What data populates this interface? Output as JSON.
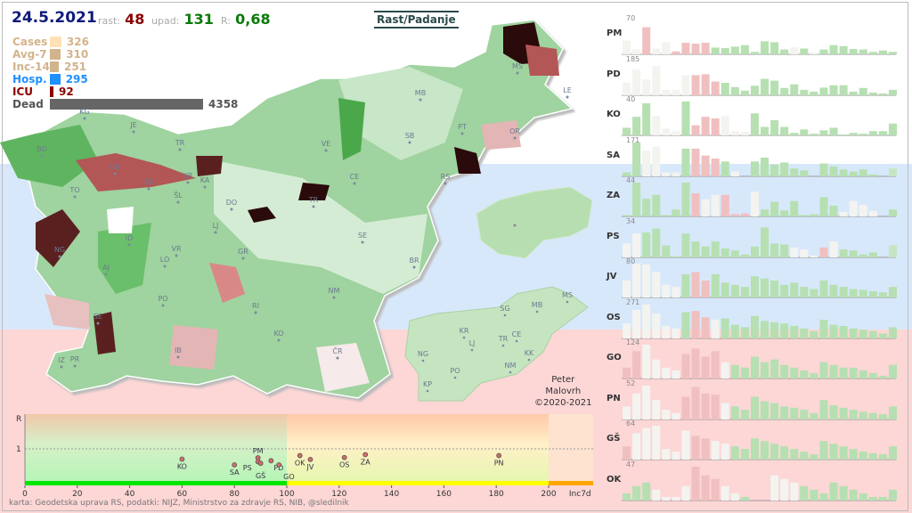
{
  "header": {
    "date": "24.5.2021",
    "rast_label": "rast:",
    "rast_value": "48",
    "upad_label": "upad:",
    "upad_value": "131",
    "r_label": "R:",
    "r_value": "0,68",
    "title": "Rast/Padanje"
  },
  "stats": [
    {
      "label": "Cases",
      "value": "326",
      "color": "#ffe1b5",
      "text_color": "#d6b48a",
      "fraction": 0.075
    },
    {
      "label": "Avg-7",
      "value": "310",
      "color": "#d2b48c",
      "text_color": "#d2b48c",
      "fraction": 0.071
    },
    {
      "label": "Inc-14",
      "value": "251",
      "color": "#d2b48c",
      "text_color": "#d2b48c",
      "fraction": 0.058
    },
    {
      "label": "Hosp.",
      "value": "295",
      "color": "#1e90ff",
      "text_color": "#1e90ff",
      "fraction": 0.068
    },
    {
      "label": "ICU",
      "value": "92",
      "color": "#8b0000",
      "text_color": "#8b0000",
      "fraction": 0.021
    },
    {
      "label": "Dead",
      "value": "4358",
      "color": "#666666",
      "text_color": "#555555",
      "fraction": 1.0
    }
  ],
  "map": {
    "labels": [
      "KG",
      "JE",
      "BO",
      "BB",
      "TR",
      "ŽE",
      "KR",
      "KA",
      "ŠL",
      "TO",
      "DO",
      "LJ",
      "ID",
      "VR",
      "GR",
      "NG",
      "AJ",
      "LO",
      "PO",
      "SE",
      "IB",
      "RI",
      "KO",
      "ČR",
      "IZ",
      "PR",
      "VE",
      "CE",
      "SB",
      "RS",
      "TR",
      "SE",
      "BR",
      "NM",
      "MB",
      "PT",
      "OR",
      "MS",
      "LE"
    ],
    "inset_labels": [
      "MS",
      "MB",
      "SG",
      "KR",
      "CE",
      "TR",
      "LJ",
      "NG",
      "KK",
      "NM",
      "PO",
      "KP"
    ]
  },
  "credit": {
    "line1": "Peter",
    "line2": "Malovrh",
    "line3": "©2020-2021"
  },
  "source": "karta: Geodetska uprava RS,  podatki: NIJZ, Ministrstvo za zdravje RS, NIB, @sledilnik",
  "regions_panel": [
    {
      "code": "PM",
      "max": "70",
      "values": [
        28,
        10,
        56,
        12,
        25,
        6,
        24,
        22,
        24,
        14,
        13,
        16,
        19,
        5,
        27,
        25,
        10,
        15,
        12,
        4,
        10,
        19,
        17,
        11,
        10,
        5,
        8,
        5
      ],
      "colors": "wwrwwrrrrggggggggwgwggggggggg"
    },
    {
      "code": "PD",
      "max": "185",
      "values": [
        70,
        140,
        87,
        160,
        30,
        30,
        110,
        110,
        115,
        75,
        68,
        45,
        25,
        52,
        90,
        80,
        40,
        60,
        30,
        20,
        42,
        55,
        55,
        20,
        40,
        15,
        10,
        30
      ],
      "colors": "wwwwwwwrrrgggggggggggggggggg"
    },
    {
      "code": "KO",
      "max": "40",
      "values": [
        9,
        22,
        38,
        23,
        8,
        5,
        40,
        12,
        22,
        20,
        23,
        5,
        4,
        26,
        10,
        18,
        10,
        3,
        7,
        2,
        6,
        9,
        1,
        3,
        2,
        5,
        5,
        14
      ],
      "colors": "gggwwwgrrrwwwggggggggggggggg"
    },
    {
      "code": "SA",
      "max": "171",
      "values": [
        20,
        171,
        130,
        150,
        20,
        20,
        140,
        140,
        105,
        90,
        75,
        25,
        0,
        75,
        95,
        60,
        70,
        40,
        30,
        0,
        65,
        50,
        35,
        25,
        35,
        10,
        0,
        40
      ],
      "colors": "ggwwwwgrrrgwwgggggggggggggg"
    },
    {
      "code": "ZA",
      "max": "44",
      "values": [
        2,
        44,
        23,
        28,
        2,
        9,
        44,
        30,
        22,
        28,
        28,
        3,
        4,
        32,
        9,
        19,
        8,
        20,
        2,
        3,
        25,
        14,
        6,
        20,
        15,
        7,
        0,
        9
      ],
      "colors": "gggggggrwwrrrwggggggggwwwwgg"
    },
    {
      "code": "PS",
      "max": "34",
      "values": [
        14,
        24,
        25,
        29,
        12,
        1,
        24,
        16,
        11,
        16,
        9,
        7,
        3,
        11,
        30,
        14,
        13,
        10,
        8,
        2,
        10,
        16,
        8,
        7,
        3,
        5,
        0,
        12
      ],
      "colors": "wwgggggggggggggggwwwrwggggg"
    },
    {
      "code": "JV",
      "max": "80",
      "values": [
        40,
        80,
        78,
        60,
        30,
        25,
        55,
        60,
        40,
        55,
        35,
        30,
        25,
        50,
        45,
        40,
        30,
        35,
        25,
        20,
        40,
        30,
        25,
        20,
        18,
        15,
        12,
        25
      ],
      "colors": "wwwwwwgrrggggggggggggggggggg"
    },
    {
      "code": "OS",
      "max": "271",
      "values": [
        120,
        230,
        271,
        200,
        100,
        80,
        210,
        220,
        170,
        150,
        160,
        110,
        90,
        180,
        140,
        130,
        120,
        100,
        80,
        60,
        150,
        110,
        100,
        80,
        70,
        60,
        40,
        90
      ],
      "colors": "wwwwwwgrrwgggggggggggggggggg"
    },
    {
      "code": "GO",
      "max": "124",
      "values": [
        40,
        100,
        124,
        70,
        40,
        30,
        90,
        110,
        80,
        100,
        60,
        50,
        40,
        80,
        60,
        70,
        50,
        40,
        30,
        20,
        60,
        50,
        40,
        40,
        30,
        20,
        10,
        50
      ],
      "colors": "rrwwwwrrrrwggggggggggggggggg"
    },
    {
      "code": "PN",
      "max": "52",
      "values": [
        20,
        40,
        52,
        30,
        15,
        10,
        35,
        50,
        40,
        38,
        25,
        20,
        15,
        35,
        28,
        25,
        20,
        18,
        15,
        10,
        30,
        22,
        18,
        15,
        12,
        10,
        8,
        20
      ],
      "colors": "wwwwwwrrrrwggggggggggggggggg"
    },
    {
      "code": "GŠ",
      "max": "64",
      "values": [
        25,
        50,
        60,
        64,
        20,
        15,
        55,
        45,
        40,
        35,
        30,
        25,
        20,
        40,
        35,
        30,
        25,
        20,
        15,
        10,
        35,
        30,
        25,
        20,
        15,
        12,
        10,
        25
      ],
      "colors": "rwwwwwwrrwwggggggggggggggggg"
    },
    {
      "code": "OK",
      "max": "47",
      "values": [
        10,
        20,
        25,
        15,
        5,
        5,
        20,
        47,
        35,
        30,
        20,
        10,
        5,
        0,
        0,
        35,
        30,
        25,
        20,
        15,
        10,
        25,
        20,
        15,
        10,
        5,
        5,
        15
      ],
      "colors": "gggwwwwrrrwwgggwwwggggggggggg"
    }
  ],
  "chart_data": {
    "type": "scatter",
    "xlabel": "Inc7d",
    "ylabel": "R",
    "xlim": [
      0,
      217
    ],
    "ylim": [
      0,
      1.9
    ],
    "x_ticks": [
      "0",
      "20",
      "40",
      "60",
      "80",
      "100",
      "120",
      "140",
      "160",
      "180",
      "200"
    ],
    "y_ticks": [
      "1"
    ],
    "zones": [
      {
        "from": 0,
        "to": 100,
        "color": "#00e600"
      },
      {
        "from": 100,
        "to": 200,
        "color": "#ffff00"
      },
      {
        "from": 200,
        "to": 217,
        "color": "#ffa500"
      }
    ],
    "points": [
      {
        "label": "KO",
        "x": 60,
        "y": 0.68
      },
      {
        "label": "SA",
        "x": 80,
        "y": 0.5
      },
      {
        "label": "PM",
        "x": 89,
        "y": 0.72
      },
      {
        "label": "PS",
        "x": 89,
        "y": 0.6
      },
      {
        "label": "GŠ",
        "x": 90,
        "y": 0.55
      },
      {
        "label": "PD",
        "x": 94,
        "y": 0.63
      },
      {
        "label": "GO",
        "x": 97,
        "y": 0.5
      },
      {
        "label": "OK",
        "x": 105,
        "y": 0.79
      },
      {
        "label": "JV",
        "x": 109,
        "y": 0.67
      },
      {
        "label": "OS",
        "x": 122,
        "y": 0.73
      },
      {
        "label": "ZA",
        "x": 130,
        "y": 0.82
      },
      {
        "label": "PN",
        "x": 181,
        "y": 0.79
      }
    ]
  }
}
